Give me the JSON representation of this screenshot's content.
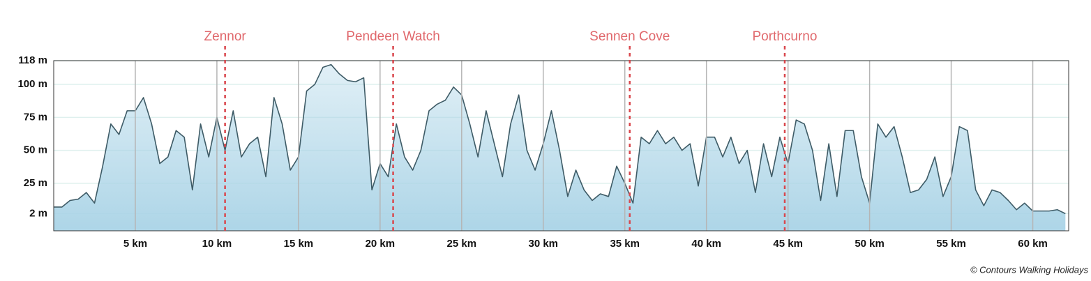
{
  "chart_data": {
    "type": "area",
    "x": [
      0,
      0.5,
      1,
      1.5,
      2,
      2.5,
      3,
      3.5,
      4,
      4.5,
      5,
      5.5,
      6,
      6.5,
      7,
      7.5,
      8,
      8.5,
      9,
      9.5,
      10,
      10.5,
      11,
      11.5,
      12,
      12.5,
      13,
      13.5,
      14,
      14.5,
      15,
      15.5,
      16,
      16.5,
      17,
      17.5,
      18,
      18.5,
      19,
      19.5,
      20,
      20.5,
      21,
      21.5,
      22,
      22.5,
      23,
      23.5,
      24,
      24.5,
      25,
      25.5,
      26,
      26.5,
      27,
      27.5,
      28,
      28.5,
      29,
      29.5,
      30,
      30.5,
      31,
      31.5,
      32,
      32.5,
      33,
      33.5,
      34,
      34.5,
      35,
      35.5,
      36,
      36.5,
      37,
      37.5,
      38,
      38.5,
      39,
      39.5,
      40,
      40.5,
      41,
      41.5,
      42,
      42.5,
      43,
      43.5,
      44,
      44.5,
      45,
      45.5,
      46,
      46.5,
      47,
      47.5,
      48,
      48.5,
      49,
      49.5,
      50,
      50.5,
      51,
      51.5,
      52,
      52.5,
      53,
      53.5,
      54,
      54.5,
      55,
      55.5,
      56,
      56.5,
      57,
      57.5,
      58,
      58.5,
      59,
      59.5,
      60,
      60.5,
      61,
      61.5,
      62
    ],
    "values": [
      7,
      7,
      12,
      13,
      18,
      10,
      38,
      70,
      62,
      80,
      80,
      90,
      70,
      40,
      45,
      65,
      60,
      20,
      70,
      45,
      75,
      50,
      80,
      45,
      55,
      60,
      30,
      90,
      70,
      35,
      45,
      95,
      100,
      113,
      115,
      108,
      103,
      102,
      105,
      20,
      40,
      30,
      70,
      45,
      35,
      50,
      80,
      85,
      88,
      98,
      92,
      70,
      45,
      80,
      55,
      30,
      70,
      92,
      50,
      35,
      55,
      80,
      50,
      15,
      35,
      20,
      12,
      17,
      15,
      38,
      25,
      10,
      60,
      55,
      65,
      55,
      60,
      50,
      55,
      23,
      60,
      60,
      45,
      60,
      40,
      50,
      18,
      55,
      30,
      60,
      40,
      73,
      70,
      50,
      12,
      55,
      15,
      65,
      65,
      30,
      10,
      70,
      60,
      68,
      45,
      18,
      20,
      28,
      45,
      15,
      30,
      68,
      65,
      20,
      8,
      20,
      18,
      12,
      5,
      10,
      4,
      4,
      4,
      5,
      2
    ],
    "color": "#3e5b66",
    "fill": "#a9d3e6",
    "xlim": [
      0,
      62.2
    ],
    "ylim": [
      -11,
      118
    ],
    "xticks": [
      {
        "value": 5,
        "label": "5 km"
      },
      {
        "value": 10,
        "label": "10 km"
      },
      {
        "value": 15,
        "label": "15 km"
      },
      {
        "value": 20,
        "label": "20 km"
      },
      {
        "value": 25,
        "label": "25 km"
      },
      {
        "value": 30,
        "label": "30 km"
      },
      {
        "value": 35,
        "label": "35 km"
      },
      {
        "value": 40,
        "label": "40 km"
      },
      {
        "value": 45,
        "label": "45 km"
      },
      {
        "value": 50,
        "label": "50 km"
      },
      {
        "value": 55,
        "label": "55 km"
      },
      {
        "value": 60,
        "label": "60 km"
      }
    ],
    "yticks": [
      {
        "value": 2,
        "label": "2 m"
      },
      {
        "value": 25,
        "label": "25 m"
      },
      {
        "value": 50,
        "label": "50 m"
      },
      {
        "value": 75,
        "label": "75 m"
      },
      {
        "value": 100,
        "label": "100 m"
      },
      {
        "value": 118,
        "label": "118 m"
      }
    ],
    "grid": true,
    "markers": [
      {
        "label": "Zennor",
        "x": 10.5
      },
      {
        "label": "Pendeen Watch",
        "x": 20.8
      },
      {
        "label": "Sennen Cove",
        "x": 35.3
      },
      {
        "label": "Porthcurno",
        "x": 44.8
      }
    ],
    "marker_color": "#d9464c",
    "credit": "© Contours Walking Holidays"
  }
}
